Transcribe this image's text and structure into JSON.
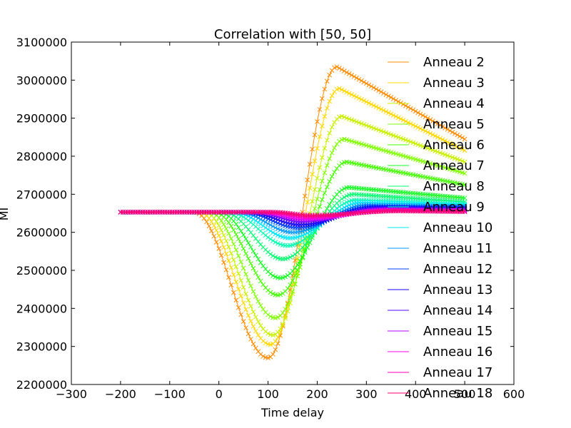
{
  "chart_data": {
    "type": "line",
    "title": "Correlation with [50, 50]",
    "xlabel": "Time delay",
    "ylabel": "MI",
    "xlim": [
      -300,
      600
    ],
    "ylim": [
      2200000,
      3100000
    ],
    "xticks": [
      -300,
      -200,
      -100,
      0,
      100,
      200,
      300,
      400,
      500,
      600
    ],
    "yticks": [
      2200000,
      2300000,
      2400000,
      2500000,
      2600000,
      2700000,
      2800000,
      2900000,
      3000000,
      3100000
    ],
    "xtick_labels": [
      "−300",
      "−200",
      "−100",
      "0",
      "100",
      "200",
      "300",
      "400",
      "500",
      "600"
    ],
    "ytick_labels": [
      "2200000",
      "2300000",
      "2400000",
      "2500000",
      "2600000",
      "2700000",
      "2800000",
      "2900000",
      "3000000",
      "3100000"
    ],
    "marker": "x",
    "legend_position": "top-right",
    "grid": false,
    "baseline": 2653000,
    "x_range": [
      -200,
      500
    ],
    "series": [
      {
        "name": "Anneau 2",
        "color": "#ff8c00",
        "min": {
          "x": 100,
          "y": 2270000
        },
        "max": {
          "x": 240,
          "y": 3035000
        },
        "end": 2845000,
        "dip_start": -50
      },
      {
        "name": "Anneau 3",
        "color": "#ffd700",
        "min": {
          "x": 105,
          "y": 2305000
        },
        "max": {
          "x": 245,
          "y": 2978000
        },
        "end": 2815000,
        "dip_start": -40
      },
      {
        "name": "Anneau 4",
        "color": "#c8f000",
        "min": {
          "x": 110,
          "y": 2330000
        },
        "max": {
          "x": 250,
          "y": 2905000
        },
        "end": 2785000,
        "dip_start": -30
      },
      {
        "name": "Anneau 5",
        "color": "#80ff00",
        "min": {
          "x": 115,
          "y": 2375000
        },
        "max": {
          "x": 255,
          "y": 2845000
        },
        "end": 2755000,
        "dip_start": -20
      },
      {
        "name": "Anneau 6",
        "color": "#44ff00",
        "min": {
          "x": 120,
          "y": 2435000
        },
        "max": {
          "x": 260,
          "y": 2785000
        },
        "end": 2725000,
        "dip_start": -10
      },
      {
        "name": "Anneau 7",
        "color": "#10ff20",
        "min": {
          "x": 125,
          "y": 2480000
        },
        "max": {
          "x": 265,
          "y": 2718000
        },
        "end": 2690000,
        "dip_start": 0
      },
      {
        "name": "Anneau 8",
        "color": "#00ff70",
        "min": {
          "x": 130,
          "y": 2530000
        },
        "max": {
          "x": 275,
          "y": 2700000
        },
        "end": 2680000,
        "dip_start": 10
      },
      {
        "name": "Anneau 9",
        "color": "#00ffb0",
        "min": {
          "x": 140,
          "y": 2565000
        },
        "max": {
          "x": 280,
          "y": 2685000
        },
        "end": 2675000,
        "dip_start": 20
      },
      {
        "name": "Anneau 10",
        "color": "#00e8ff",
        "min": {
          "x": 145,
          "y": 2585000
        },
        "max": {
          "x": 290,
          "y": 2678000
        },
        "end": 2672000,
        "dip_start": 30
      },
      {
        "name": "Anneau 11",
        "color": "#0098ff",
        "min": {
          "x": 150,
          "y": 2600000
        },
        "max": {
          "x": 300,
          "y": 2672000
        },
        "end": 2668000,
        "dip_start": 40
      },
      {
        "name": "Anneau 12",
        "color": "#0040ff",
        "min": {
          "x": 160,
          "y": 2612000
        },
        "max": {
          "x": 310,
          "y": 2668000
        },
        "end": 2665000,
        "dip_start": 50
      },
      {
        "name": "Anneau 13",
        "color": "#1000ff",
        "min": {
          "x": 165,
          "y": 2620000
        },
        "max": {
          "x": 320,
          "y": 2665000
        },
        "end": 2662000,
        "dip_start": 60
      },
      {
        "name": "Anneau 14",
        "color": "#5a00ff",
        "min": {
          "x": 170,
          "y": 2628000
        },
        "max": {
          "x": 330,
          "y": 2662000
        },
        "end": 2660000,
        "dip_start": 70
      },
      {
        "name": "Anneau 15",
        "color": "#b800ff",
        "min": {
          "x": 175,
          "y": 2633000
        },
        "max": {
          "x": 340,
          "y": 2660000
        },
        "end": 2658000,
        "dip_start": 80
      },
      {
        "name": "Anneau 16",
        "color": "#ff00f0",
        "min": {
          "x": 180,
          "y": 2637000
        },
        "max": {
          "x": 350,
          "y": 2658000
        },
        "end": 2656000,
        "dip_start": 90
      },
      {
        "name": "Anneau 17",
        "color": "#ff00b0",
        "min": {
          "x": 185,
          "y": 2641000
        },
        "max": {
          "x": 360,
          "y": 2657000
        },
        "end": 2655000,
        "dip_start": 100
      },
      {
        "name": "Anneau 18",
        "color": "#ff0070",
        "min": {
          "x": 190,
          "y": 2645000
        },
        "max": {
          "x": 370,
          "y": 2656000
        },
        "end": 2654000,
        "dip_start": 110
      }
    ]
  }
}
